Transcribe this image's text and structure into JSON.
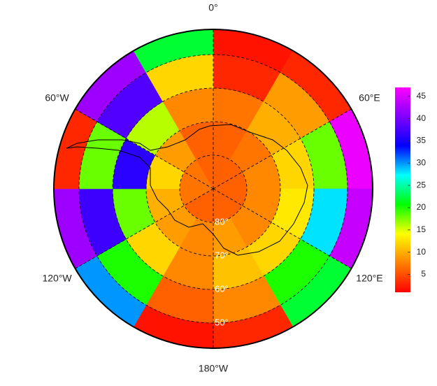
{
  "chart_data": {
    "type": "polar_heatmap",
    "lat_edges": [
      -90,
      -80,
      -70,
      -60,
      -50,
      -42.5
    ],
    "lon_edges": [
      0,
      30,
      60,
      90,
      120,
      150,
      180,
      210,
      240,
      270,
      300,
      330,
      360
    ],
    "values": [
      [
        6,
        6,
        6,
        6,
        6,
        6,
        6,
        6,
        7,
        7,
        7,
        6
      ],
      [
        6,
        7,
        8,
        8,
        8,
        9,
        8,
        9,
        10,
        12,
        9,
        6
      ],
      [
        7,
        10,
        12,
        13,
        12,
        11,
        8,
        12,
        18,
        36,
        16,
        8
      ],
      [
        3,
        9,
        18,
        28,
        20,
        8,
        6,
        20,
        37,
        18,
        38,
        12
      ],
      [
        2,
        3,
        46,
        44,
        22,
        3,
        2,
        30,
        42,
        3,
        42,
        22
      ]
    ],
    "lonticks": [
      {
        "value": 0,
        "label": "0°"
      },
      {
        "value": 60,
        "label": "60°E"
      },
      {
        "value": 120,
        "label": "120°E"
      },
      {
        "value": 180,
        "label": "180°W"
      },
      {
        "value": -120,
        "label": "120°W"
      },
      {
        "value": -60,
        "label": "60°W"
      }
    ],
    "latticks": [
      {
        "value": -80,
        "label": "80°"
      },
      {
        "value": -70,
        "label": "70°"
      },
      {
        "value": -60,
        "label": "60°"
      },
      {
        "value": -50,
        "label": "50°"
      }
    ],
    "clim": [
      1,
      47
    ],
    "cticks": [
      5,
      10,
      15,
      20,
      25,
      30,
      35,
      40,
      45
    ],
    "colormap": [
      "#ff0000",
      "#ff8000",
      "#ffff00",
      "#00ff00",
      "#00ffff",
      "#0000ff",
      "#8000ff",
      "#ff00ff"
    ],
    "grid": true
  }
}
